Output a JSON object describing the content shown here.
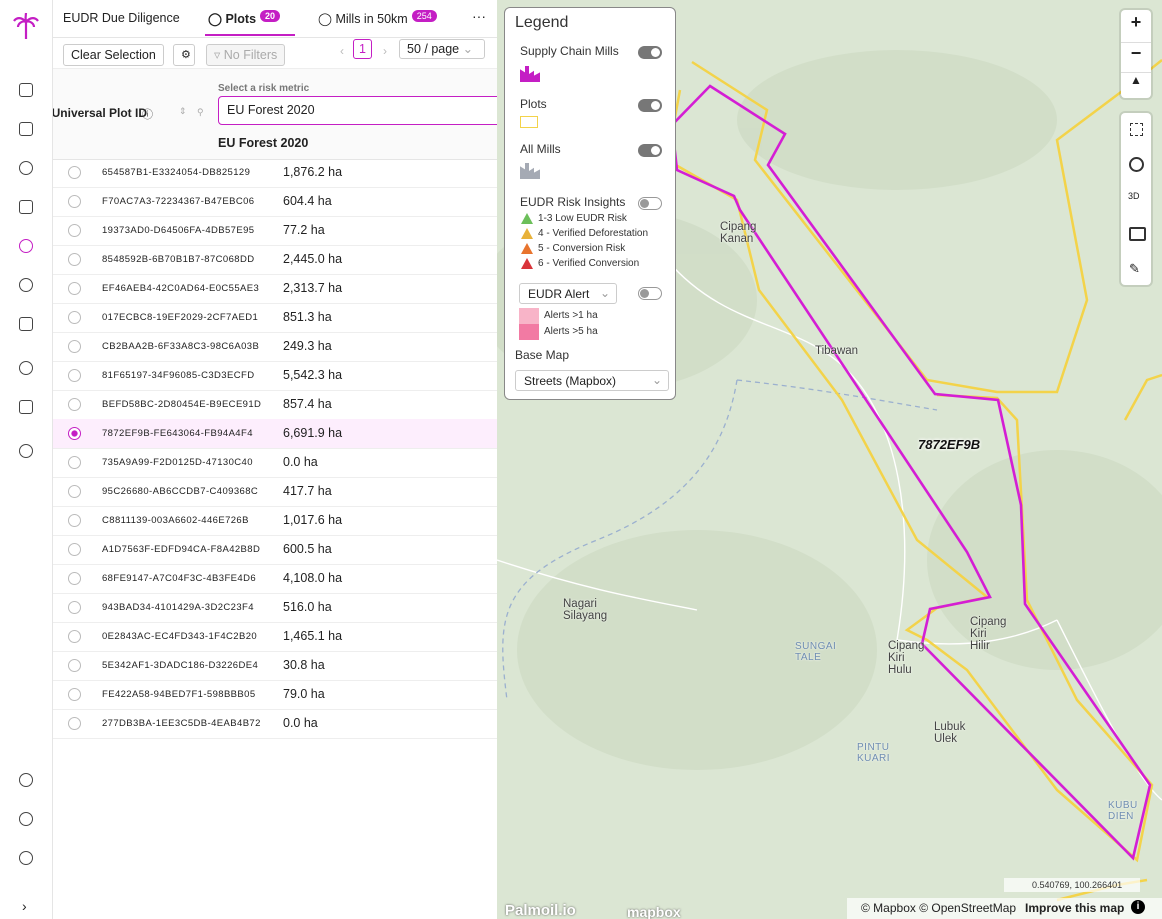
{
  "tabs": [
    {
      "label": "EUDR Due Diligence"
    },
    {
      "label": "Plots",
      "badge": "20"
    },
    {
      "label": "Mills in 50km",
      "badge": "254"
    }
  ],
  "more": "···",
  "toolbar": {
    "clear": "Clear Selection",
    "filters": "No Filters",
    "page": "1",
    "page_size": "50 / page"
  },
  "table": {
    "id_header": "Universal Plot ID",
    "metric_label": "Select a risk metric",
    "metric_value": "EU Forest 2020",
    "metric_header": "EU Forest 2020",
    "selected_row": 9,
    "rows": [
      [
        "654587B1-E3324054-DB825129",
        "1,876.2 ha"
      ],
      [
        "F70AC7A3-72234367-B47EBC06",
        "604.4 ha"
      ],
      [
        "19373AD0-D64506FA-4DB57E95",
        "77.2 ha"
      ],
      [
        "8548592B-6B70B1B7-87C068DD",
        "2,445.0 ha"
      ],
      [
        "EF46AEB4-42C0AD64-E0C55AE3",
        "2,313.7 ha"
      ],
      [
        "017ECBC8-19EF2029-2CF7AED1",
        "851.3 ha"
      ],
      [
        "CB2BAA2B-6F33A8C3-98C6A03B",
        "249.3 ha"
      ],
      [
        "81F65197-34F96085-C3D3ECFD",
        "5,542.3 ha"
      ],
      [
        "BEFD58BC-2D80454E-B9ECE91D",
        "857.4 ha"
      ],
      [
        "7872EF9B-FE643064-FB94A4F4",
        "6,691.9 ha"
      ],
      [
        "735A9A99-F2D0125D-47130C40",
        "0.0 ha"
      ],
      [
        "95C26680-AB6CCDB7-C409368C",
        "417.7 ha"
      ],
      [
        "C8811139-003A6602-446E726B",
        "1,017.6 ha"
      ],
      [
        "A1D7563F-EDFD94CA-F8A42B8D",
        "600.5 ha"
      ],
      [
        "68FE9147-A7C04F3C-4B3FE4D6",
        "4,108.0 ha"
      ],
      [
        "943BAD34-4101429A-3D2C23F4",
        "516.0 ha"
      ],
      [
        "0E2843AC-EC4FD343-1F4C2B20",
        "1,465.1 ha"
      ],
      [
        "5E342AF1-3DADC186-D3226DE4",
        "30.8 ha"
      ],
      [
        "FE422A58-94BED7F1-598BBB05",
        "79.0 ha"
      ],
      [
        "277DB3BA-1EE3C5DB-4EAB4B72",
        "0.0 ha"
      ]
    ]
  },
  "legend": {
    "title": "Legend",
    "layers": [
      {
        "name": "Supply Chain Mills",
        "on": true
      },
      {
        "name": "Plots",
        "on": true
      },
      {
        "name": "All Mills",
        "on": true
      },
      {
        "name": "EUDR Risk Insights",
        "on": false
      }
    ],
    "risks": [
      {
        "label": "1-3 Low EUDR Risk",
        "color": "#6cbf5a"
      },
      {
        "label": "4 - Verified Deforestation",
        "color": "#e8b23a"
      },
      {
        "label": "5 - Conversion Risk",
        "color": "#e8742e"
      },
      {
        "label": "6 - Verified Conversion",
        "color": "#d9343a"
      }
    ],
    "alert": {
      "select": "EUDR Alert",
      "on": false,
      "items": [
        {
          "label": "Alerts >1 ha",
          "color": "#f8b4c8"
        },
        {
          "label": "Alerts >5 ha",
          "color": "#f27aa3"
        }
      ]
    },
    "base_map_label": "Base Map",
    "base_map": "Streets (Mapbox)"
  },
  "map": {
    "labels": [
      "Cipang Kanan",
      "Tibawan",
      "Nagari Silayang",
      "SUNGAI TALE",
      "Cipang Kiri Hulu",
      "Cipang Kiri Hilir",
      "Lubuk Ulek",
      "PINTU KUARI",
      "KUBU DIEN"
    ],
    "plot_label": "7872EF9B",
    "zoom_in": "+",
    "zoom_out": "−",
    "coords": "0.540769, 100.266401",
    "attribution": "© Mapbox © OpenStreetMap",
    "improve": "Improve this map",
    "brand": "Palmoil.io",
    "mapbox": "mapbox"
  }
}
